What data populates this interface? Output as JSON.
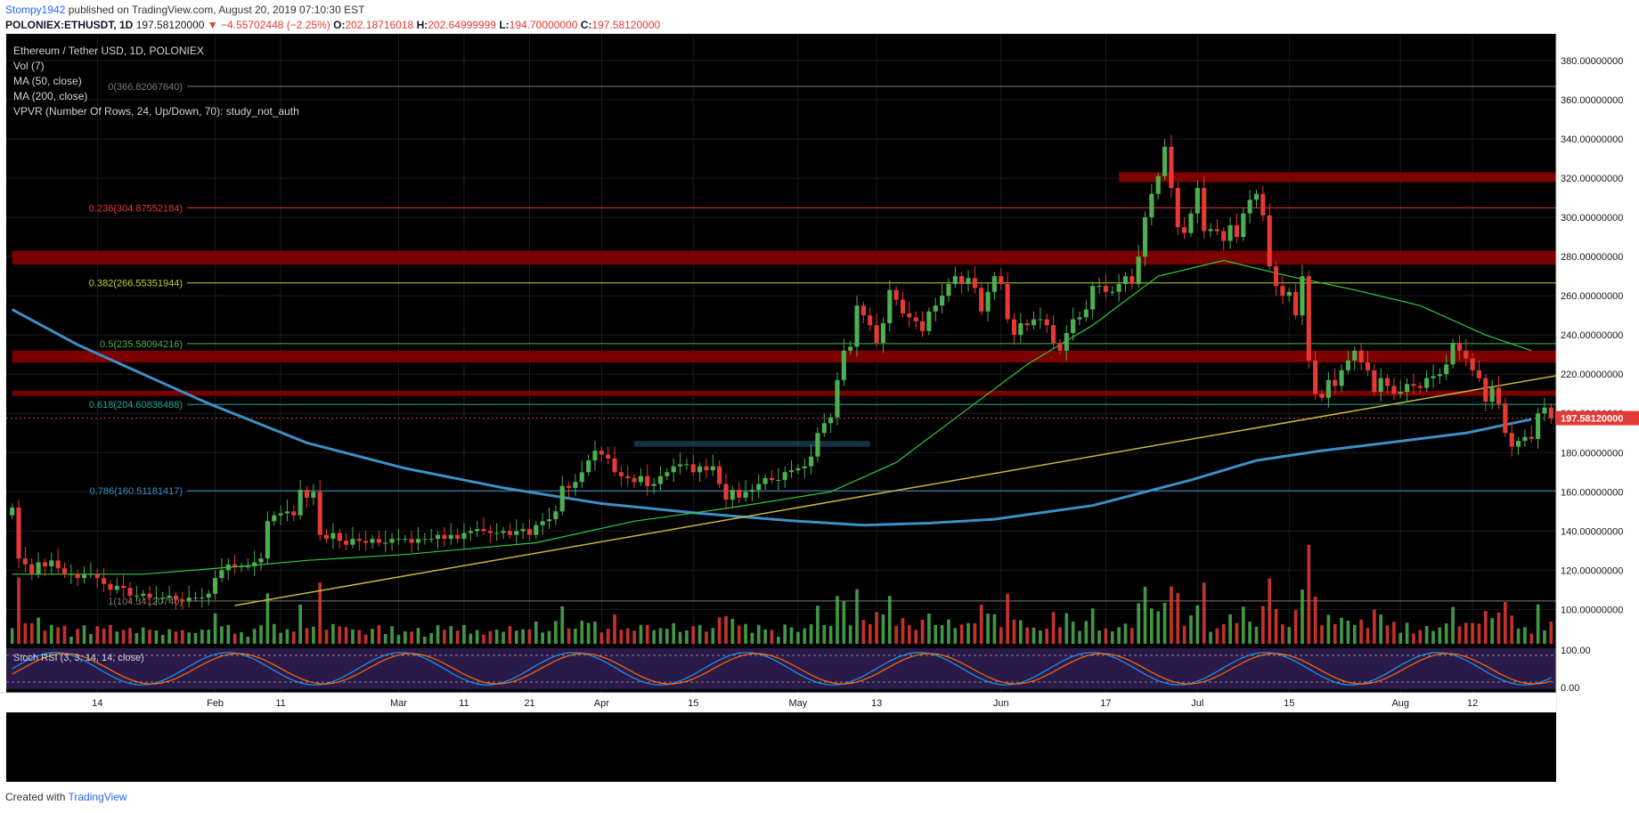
{
  "header": {
    "author": "Stompy1942",
    "published_text": "published on TradingView.com, August 20, 2019 07:10:30 EST",
    "symbol": "POLONIEX:ETHUSDT, 1D",
    "last_price": "197.58120000",
    "change": "▼ −4.55702448 (−2.25%)",
    "open_label": "O:",
    "open": "202.18716018",
    "high_label": "H:",
    "high": "202.64999999",
    "low_label": "L:",
    "low": "194.70000000",
    "close_label": "C:",
    "close": "197.58120000"
  },
  "legend": {
    "title": "Ethereum / Tether USD, 1D, POLONIEX",
    "indicators": [
      "Vol (7)",
      "MA (50, close)",
      "MA (200, close)",
      "VPVR (Number Of Rows, 24, Up/Down, 70): study_not_auth"
    ]
  },
  "footer": {
    "created_with": "Created with",
    "brand": "TradingView"
  },
  "colors": {
    "background": "#000000",
    "grid": "#1c1c1c",
    "up": "#26a69a",
    "down": "#ef5350",
    "up_candle": "#4caf50",
    "down_candle": "#e53935",
    "ma50": "#2ecc40",
    "ma200": "#3d8fc6",
    "trendline": "#c9b83a",
    "resistance_zone": "#8b0000",
    "fib_0": "#7a7a7a",
    "fib_0236": "#e53935",
    "fib_0382": "#b7d630",
    "fib_05": "#4caf50",
    "fib_0618": "#26a69a",
    "fib_0786": "#3d8fc6",
    "stoch_bg": "#2a1a4a",
    "stoch_k": "#2196f3",
    "stoch_d": "#ff6d00",
    "price_tag": "#e53935"
  },
  "chart_data": {
    "type": "candlestick",
    "title": "Ethereum / Tether USD, 1D, POLONIEX",
    "y_axis": {
      "min": 80,
      "max": 380,
      "ticks": [
        "380.00000000",
        "360.00000000",
        "340.00000000",
        "320.00000000",
        "300.00000000",
        "280.00000000",
        "260.00000000",
        "240.00000000",
        "220.00000000",
        "200.00000000",
        "180.00000000",
        "160.00000000",
        "140.00000000",
        "120.00000000",
        "100.00000000"
      ],
      "tick_values": [
        380,
        360,
        340,
        320,
        300,
        280,
        260,
        240,
        220,
        200,
        180,
        160,
        140,
        120,
        100
      ]
    },
    "x_axis": {
      "tick_labels": [
        "14",
        "Feb",
        "11",
        "Mar",
        "11",
        "21",
        "Apr",
        "15",
        "May",
        "13",
        "Jun",
        "17",
        "Jul",
        "15",
        "Aug",
        "12"
      ],
      "tick_days": [
        13,
        31,
        41,
        59,
        69,
        79,
        90,
        104,
        120,
        132,
        151,
        167,
        181,
        195,
        212,
        223
      ]
    },
    "current_price_label": "197.58120000",
    "current_price": 197.5812,
    "fib_levels": [
      {
        "label": "0(366.82067640)",
        "value": 366.8207
      },
      {
        "label": "0.236(304.87552184)",
        "value": 304.8755
      },
      {
        "label": "0.382(266.55351944)",
        "value": 266.5535
      },
      {
        "label": "0.5(235.58094216)",
        "value": 235.5809
      },
      {
        "label": "0.618(204.60836488)",
        "value": 204.6084
      },
      {
        "label": "0.786(160.51181417)",
        "value": 160.5118
      },
      {
        "label": "1(104.34120740)",
        "value": 104.3412
      }
    ],
    "resistance_zones": [
      {
        "from": 318,
        "to": 323,
        "start_day": 169
      },
      {
        "from": 276,
        "to": 283,
        "start_day": 0
      },
      {
        "from": 226,
        "to": 232,
        "start_day": 0
      },
      {
        "from": 209,
        "to": 211.5,
        "start_day": 0
      }
    ],
    "support_box": {
      "from": 183,
      "to": 186,
      "start_day": 95,
      "end_day": 131
    },
    "trendline": {
      "start_day": 34,
      "start_value": 102,
      "end_day": 244,
      "end_value": 224
    },
    "ma50": [
      [
        0,
        118
      ],
      [
        20,
        118
      ],
      [
        35,
        122
      ],
      [
        45,
        125
      ],
      [
        60,
        128
      ],
      [
        80,
        134
      ],
      [
        95,
        145
      ],
      [
        110,
        152
      ],
      [
        125,
        160
      ],
      [
        135,
        175
      ],
      [
        145,
        200
      ],
      [
        155,
        225
      ],
      [
        165,
        245
      ],
      [
        175,
        270
      ],
      [
        185,
        278
      ],
      [
        195,
        270
      ],
      [
        205,
        263
      ],
      [
        215,
        255
      ],
      [
        225,
        240
      ],
      [
        232,
        232
      ]
    ],
    "ma200": [
      [
        0,
        253
      ],
      [
        10,
        235
      ],
      [
        20,
        220
      ],
      [
        30,
        205
      ],
      [
        45,
        185
      ],
      [
        60,
        172
      ],
      [
        75,
        162
      ],
      [
        90,
        154
      ],
      [
        105,
        149
      ],
      [
        120,
        145
      ],
      [
        130,
        143
      ],
      [
        140,
        144
      ],
      [
        150,
        146
      ],
      [
        165,
        153
      ],
      [
        180,
        166
      ],
      [
        190,
        176
      ],
      [
        200,
        181
      ],
      [
        210,
        185
      ],
      [
        222,
        190
      ],
      [
        232,
        197
      ]
    ],
    "series_ohlc_note": "daily candles Jan 1 - Aug 20, 2019",
    "closes": [
      152,
      126,
      123,
      118,
      124,
      122,
      125,
      121,
      118,
      118,
      116,
      118,
      118,
      116,
      113,
      110,
      112,
      111,
      107,
      107,
      108,
      106,
      106,
      106,
      107,
      105,
      104,
      106,
      106,
      106,
      108,
      116,
      120,
      123,
      122,
      122,
      122,
      124,
      126,
      145,
      148,
      149,
      150,
      148,
      161,
      157,
      160,
      138,
      136,
      139,
      135,
      133,
      136,
      135,
      134,
      136,
      134,
      134,
      136,
      136,
      136,
      134,
      136,
      136,
      136,
      138,
      136,
      138,
      136,
      139,
      140,
      141,
      140,
      139,
      139,
      140,
      138,
      140,
      141,
      138,
      143,
      145,
      146,
      150,
      163,
      162,
      165,
      170,
      176,
      181,
      179,
      177,
      170,
      168,
      167,
      165,
      168,
      163,
      164,
      168,
      170,
      173,
      174,
      174,
      170,
      173,
      171,
      173,
      164,
      156,
      161,
      157,
      160,
      161,
      164,
      167,
      166,
      166,
      170,
      171,
      172,
      173,
      178,
      190,
      195,
      198,
      217,
      232,
      234,
      255,
      250,
      245,
      236,
      246,
      263,
      258,
      251,
      249,
      247,
      242,
      252,
      255,
      260,
      266,
      270,
      266,
      269,
      264,
      252,
      262,
      270,
      266,
      248,
      240,
      246,
      245,
      248,
      248,
      245,
      236,
      232,
      241,
      248,
      249,
      253,
      265,
      265,
      262,
      262,
      266,
      270,
      266,
      280,
      300,
      312,
      321,
      336,
      315,
      295,
      292,
      302,
      315,
      293,
      294,
      293,
      288,
      296,
      290,
      302,
      309,
      312,
      301,
      275,
      265,
      260,
      262,
      250,
      270,
      227,
      210,
      208,
      217,
      214,
      222,
      227,
      232,
      226,
      222,
      211,
      218,
      214,
      210,
      211,
      215,
      214,
      213,
      218,
      219,
      220,
      225,
      236,
      232,
      228,
      222,
      218,
      206,
      213,
      205,
      190,
      183,
      186,
      188,
      187,
      200,
      203,
      197.6
    ]
  }
}
